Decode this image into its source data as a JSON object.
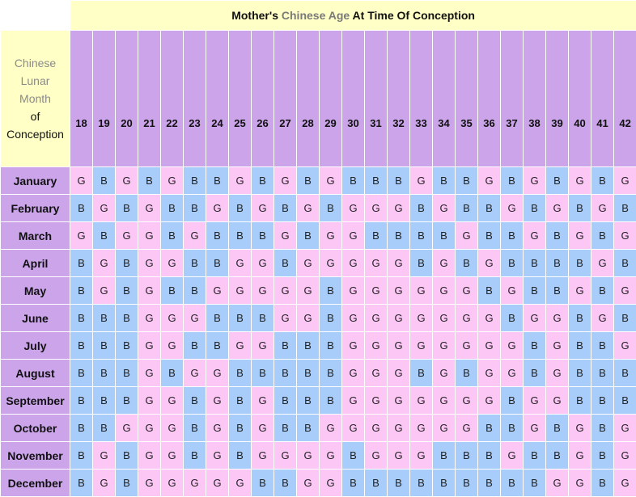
{
  "title": {
    "before": "Mother's ",
    "accent": "Chinese Age",
    "after": " At Time Of Conception"
  },
  "row_header": {
    "line1": "Chinese",
    "line2": "Lunar",
    "line3": "Month",
    "line4": "of",
    "line5": "Conception"
  },
  "ages": [
    "18",
    "19",
    "20",
    "21",
    "22",
    "23",
    "24",
    "25",
    "26",
    "27",
    "28",
    "29",
    "30",
    "31",
    "32",
    "33",
    "34",
    "35",
    "36",
    "37",
    "38",
    "39",
    "40",
    "41",
    "42"
  ],
  "colors": {
    "G": "#fcc6f5",
    "B": "#a8cdfa",
    "header": "#cba4ea",
    "title_bg": "#ffffc6"
  },
  "rows": [
    {
      "month": "January",
      "cells": [
        "G",
        "B",
        "G",
        "B",
        "G",
        "B",
        "B",
        "G",
        "B",
        "G",
        "B",
        "G",
        "B",
        "B",
        "B",
        "G",
        "B",
        "B",
        "G",
        "B",
        "G",
        "B",
        "G",
        "B",
        "G"
      ]
    },
    {
      "month": "February",
      "cells": [
        "B",
        "G",
        "B",
        "G",
        "B",
        "B",
        "G",
        "B",
        "G",
        "B",
        "G",
        "B",
        "G",
        "G",
        "G",
        "B",
        "G",
        "B",
        "B",
        "G",
        "B",
        "G",
        "B",
        "G",
        "B"
      ]
    },
    {
      "month": "March",
      "cells": [
        "G",
        "B",
        "G",
        "G",
        "B",
        "G",
        "B",
        "B",
        "B",
        "G",
        "B",
        "G",
        "G",
        "B",
        "B",
        "B",
        "B",
        "G",
        "B",
        "B",
        "G",
        "B",
        "G",
        "B",
        "G"
      ]
    },
    {
      "month": "April",
      "cells": [
        "B",
        "G",
        "B",
        "G",
        "G",
        "B",
        "B",
        "G",
        "G",
        "B",
        "G",
        "G",
        "G",
        "G",
        "G",
        "B",
        "G",
        "B",
        "G",
        "B",
        "B",
        "B",
        "B",
        "G",
        "B"
      ]
    },
    {
      "month": "May",
      "cells": [
        "B",
        "G",
        "B",
        "G",
        "B",
        "B",
        "G",
        "G",
        "G",
        "G",
        "G",
        "B",
        "G",
        "G",
        "G",
        "G",
        "G",
        "G",
        "B",
        "G",
        "B",
        "B",
        "G",
        "B",
        "G"
      ]
    },
    {
      "month": "June",
      "cells": [
        "B",
        "B",
        "B",
        "G",
        "G",
        "G",
        "B",
        "B",
        "B",
        "G",
        "G",
        "B",
        "G",
        "G",
        "G",
        "G",
        "G",
        "G",
        "G",
        "B",
        "G",
        "G",
        "B",
        "G",
        "B"
      ]
    },
    {
      "month": "July",
      "cells": [
        "B",
        "B",
        "B",
        "G",
        "G",
        "B",
        "B",
        "G",
        "G",
        "B",
        "B",
        "B",
        "G",
        "G",
        "G",
        "G",
        "G",
        "G",
        "G",
        "G",
        "B",
        "G",
        "B",
        "B",
        "G"
      ]
    },
    {
      "month": "August",
      "cells": [
        "B",
        "B",
        "B",
        "G",
        "B",
        "G",
        "G",
        "B",
        "B",
        "B",
        "B",
        "B",
        "G",
        "G",
        "G",
        "B",
        "G",
        "B",
        "G",
        "G",
        "B",
        "G",
        "B",
        "B",
        "B"
      ]
    },
    {
      "month": "September",
      "cells": [
        "B",
        "B",
        "B",
        "G",
        "G",
        "B",
        "G",
        "B",
        "G",
        "B",
        "B",
        "B",
        "G",
        "G",
        "G",
        "G",
        "G",
        "G",
        "G",
        "B",
        "G",
        "G",
        "B",
        "B",
        "B"
      ]
    },
    {
      "month": "October",
      "cells": [
        "B",
        "B",
        "G",
        "G",
        "G",
        "B",
        "G",
        "B",
        "G",
        "B",
        "B",
        "G",
        "G",
        "G",
        "G",
        "G",
        "G",
        "G",
        "B",
        "B",
        "G",
        "B",
        "G",
        "B",
        "G"
      ]
    },
    {
      "month": "November",
      "cells": [
        "B",
        "G",
        "B",
        "G",
        "G",
        "B",
        "G",
        "B",
        "G",
        "G",
        "G",
        "G",
        "B",
        "G",
        "G",
        "G",
        "B",
        "B",
        "B",
        "G",
        "B",
        "B",
        "G",
        "B",
        "G"
      ]
    },
    {
      "month": "December",
      "cells": [
        "B",
        "G",
        "B",
        "G",
        "G",
        "G",
        "G",
        "G",
        "B",
        "B",
        "G",
        "G",
        "B",
        "B",
        "B",
        "B",
        "B",
        "B",
        "B",
        "B",
        "B",
        "G",
        "G",
        "B",
        "G"
      ]
    }
  ]
}
